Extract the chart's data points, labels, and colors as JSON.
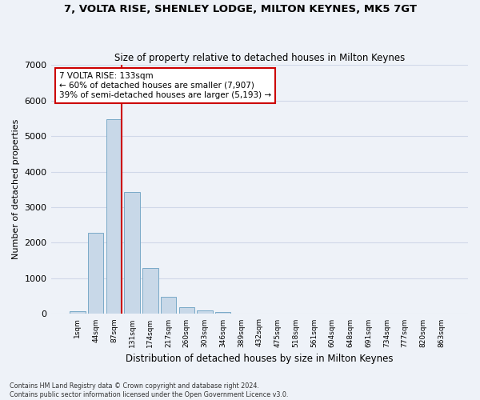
{
  "title": "7, VOLTA RISE, SHENLEY LODGE, MILTON KEYNES, MK5 7GT",
  "subtitle": "Size of property relative to detached houses in Milton Keynes",
  "xlabel": "Distribution of detached houses by size in Milton Keynes",
  "ylabel": "Number of detached properties",
  "footnote1": "Contains HM Land Registry data © Crown copyright and database right 2024.",
  "footnote2": "Contains public sector information licensed under the Open Government Licence v3.0.",
  "bar_labels": [
    "1sqm",
    "44sqm",
    "87sqm",
    "131sqm",
    "174sqm",
    "217sqm",
    "260sqm",
    "303sqm",
    "346sqm",
    "389sqm",
    "432sqm",
    "475sqm",
    "518sqm",
    "561sqm",
    "604sqm",
    "648sqm",
    "691sqm",
    "734sqm",
    "777sqm",
    "820sqm",
    "863sqm"
  ],
  "bar_values": [
    80,
    2270,
    5470,
    3420,
    1300,
    480,
    190,
    110,
    65,
    0,
    0,
    0,
    0,
    0,
    0,
    0,
    0,
    0,
    0,
    0,
    0
  ],
  "bar_color": "#c8d8e8",
  "bar_edge_color": "#7aaac8",
  "grid_color": "#d0d8e8",
  "bg_color": "#eef2f8",
  "annotation_text": "7 VOLTA RISE: 133sqm\n← 60% of detached houses are smaller (7,907)\n39% of semi-detached houses are larger (5,193) →",
  "annotation_box_color": "#ffffff",
  "annotation_box_edge": "#cc0000",
  "vline_x": 2.43,
  "vline_color": "#cc0000",
  "ylim": [
    0,
    7000
  ],
  "yticks": [
    0,
    1000,
    2000,
    3000,
    4000,
    5000,
    6000,
    7000
  ]
}
